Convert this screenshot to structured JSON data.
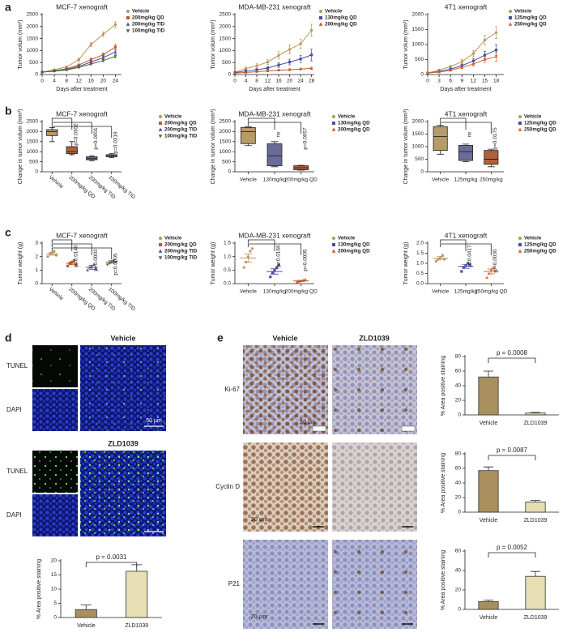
{
  "panel_labels": [
    "a",
    "b",
    "c",
    "d",
    "e"
  ],
  "chart_data": [
    {
      "type": "line",
      "title": "MCF-7 xenograft",
      "xlabel": "Days after treatment",
      "ylabel": "Tumor volum (mm³)",
      "x": [
        0,
        4,
        8,
        12,
        16,
        20,
        24
      ],
      "xlim": [
        0,
        26
      ],
      "xticks": [
        0,
        4,
        8,
        12,
        16,
        20,
        24
      ],
      "ylim": [
        0,
        2500
      ],
      "yticks": [
        0,
        500,
        1000,
        1500,
        2000,
        2500
      ],
      "series": [
        {
          "name": "Vehicle",
          "color": "#b8965a",
          "marker": "circle",
          "values": [
            100,
            200,
            320,
            620,
            1250,
            1680,
            2080
          ],
          "errors": [
            10,
            30,
            40,
            60,
            90,
            100,
            120
          ]
        },
        {
          "name": "200mg/kg QD",
          "color": "#c0582e",
          "marker": "square",
          "values": [
            100,
            160,
            240,
            400,
            620,
            820,
            1150
          ],
          "errors": [
            10,
            20,
            30,
            40,
            60,
            80,
            110
          ]
        },
        {
          "name": "200mg/kg TID",
          "color": "#4b4f9e",
          "marker": "triangle",
          "values": [
            100,
            150,
            210,
            340,
            520,
            700,
            950
          ],
          "errors": [
            10,
            20,
            30,
            40,
            50,
            60,
            80
          ]
        },
        {
          "name": "100mg/kg TID",
          "color": "#4e6b3a",
          "marker": "triangle-down",
          "values": [
            100,
            140,
            190,
            300,
            440,
            580,
            760
          ],
          "errors": [
            10,
            15,
            20,
            30,
            40,
            50,
            60
          ]
        }
      ]
    },
    {
      "type": "line",
      "title": "MDA-MB-231 xenograft",
      "xlabel": "Days after treatment",
      "ylabel": "Tumor volum (mm³)",
      "x": [
        0,
        4,
        8,
        12,
        16,
        20,
        24,
        28
      ],
      "xlim": [
        0,
        29
      ],
      "xticks": [
        0,
        4,
        8,
        12,
        16,
        20,
        24,
        28
      ],
      "ylim": [
        0,
        2500
      ],
      "yticks": [
        0,
        500,
        1000,
        1500,
        2000,
        2500
      ],
      "series": [
        {
          "name": "Vehicle",
          "color": "#b8965a",
          "marker": "circle",
          "values": [
            100,
            250,
            370,
            520,
            800,
            1050,
            1280,
            1850
          ],
          "errors": [
            20,
            60,
            80,
            100,
            150,
            180,
            200,
            250
          ]
        },
        {
          "name": "130mg/kg QD",
          "color": "#4b4f9e",
          "marker": "square",
          "values": [
            80,
            150,
            200,
            270,
            400,
            520,
            650,
            820
          ],
          "errors": [
            15,
            40,
            50,
            60,
            100,
            120,
            150,
            250
          ]
        },
        {
          "name": "200mg/kg QD",
          "color": "#c0582e",
          "marker": "triangle",
          "values": [
            60,
            90,
            120,
            150,
            180,
            200,
            230,
            260
          ],
          "errors": [
            10,
            20,
            20,
            30,
            30,
            40,
            40,
            50
          ]
        }
      ]
    },
    {
      "type": "line",
      "title": "4T1 xenograft",
      "xlabel": "Days after treatment",
      "ylabel": "Tumor volum (mm³)",
      "x": [
        0,
        3,
        6,
        9,
        12,
        15,
        18
      ],
      "xlim": [
        0,
        20
      ],
      "xticks": [
        0,
        3,
        6,
        9,
        12,
        15,
        18
      ],
      "ylim": [
        0,
        2000
      ],
      "yticks": [
        0,
        500,
        1000,
        1500,
        2000
      ],
      "series": [
        {
          "name": "Vehicle",
          "color": "#b8965a",
          "marker": "circle",
          "values": [
            50,
            150,
            260,
            430,
            700,
            1150,
            1400
          ],
          "errors": [
            10,
            30,
            50,
            70,
            100,
            150,
            200
          ]
        },
        {
          "name": "125mg/kg QD",
          "color": "#4b4f9e",
          "marker": "square",
          "values": [
            50,
            100,
            180,
            300,
            450,
            650,
            820
          ],
          "errors": [
            10,
            20,
            30,
            50,
            80,
            120,
            180
          ]
        },
        {
          "name": "250mg/kg QD",
          "color": "#d0652e",
          "marker": "triangle",
          "values": [
            50,
            80,
            140,
            240,
            350,
            500,
            600
          ],
          "errors": [
            10,
            20,
            30,
            40,
            60,
            100,
            150
          ]
        }
      ]
    },
    {
      "type": "box",
      "title": "MCF-7 xenograft",
      "ylabel": "Change in tumor volum (mm³)",
      "categories": [
        "Vehicle",
        "200mg/kg QD",
        "200mg/kg TID",
        "100mg/kg TID"
      ],
      "x_label_rotation": 40,
      "ylim": [
        0,
        2500
      ],
      "yticks": [
        0,
        500,
        1000,
        1500,
        2000,
        2500
      ],
      "boxes": [
        {
          "min": 1500,
          "q1": 1800,
          "median": 2000,
          "q3": 2100,
          "max": 2200
        },
        {
          "min": 850,
          "q1": 900,
          "median": 1000,
          "q3": 1250,
          "max": 1500
        },
        {
          "min": 550,
          "q1": 600,
          "median": 650,
          "q3": 750,
          "max": 800
        },
        {
          "min": 700,
          "q1": 750,
          "median": 800,
          "q3": 850,
          "max": 900
        }
      ],
      "colors": [
        "#b59b68",
        "#b0603a",
        "#6b6b8a",
        "#8a8060"
      ],
      "p_labels": [
        null,
        "p=0.0302",
        "p=0.0001",
        "p=0.0319"
      ],
      "legend": [
        {
          "name": "Vehicle",
          "color": "#b8965a",
          "marker": "circle"
        },
        {
          "name": "200mg/kg QD",
          "color": "#c0582e",
          "marker": "square"
        },
        {
          "name": "200mg/kg TID",
          "color": "#4b4f9e",
          "marker": "triangle"
        },
        {
          "name": "100mg/kg TID",
          "color": "#4e6b3a",
          "marker": "triangle-down"
        }
      ]
    },
    {
      "type": "box",
      "title": "MDA-MB-231 xenograft",
      "ylabel": "Change in tumor volum (mm³)",
      "categories": [
        "Vehicle",
        "130mg/kg",
        "200mg/kg QD"
      ],
      "ylim": [
        0,
        2500
      ],
      "yticks": [
        0,
        500,
        1000,
        1500,
        2000,
        2500
      ],
      "boxes": [
        {
          "min": 1300,
          "q1": 1400,
          "median": 2000,
          "q3": 2200,
          "max": 2250
        },
        {
          "min": 250,
          "q1": 300,
          "median": 800,
          "q3": 1400,
          "max": 1500
        },
        {
          "min": 80,
          "q1": 100,
          "median": 200,
          "q3": 300,
          "max": 320
        }
      ],
      "colors": [
        "#b59b68",
        "#6b6b9a",
        "#b0603a"
      ],
      "p_labels": [
        null,
        "ns",
        "p=0.0057"
      ],
      "legend": [
        {
          "name": "Vehicle",
          "color": "#b8965a",
          "marker": "circle"
        },
        {
          "name": "130mg/kg QD",
          "color": "#4b4f9e",
          "marker": "square"
        },
        {
          "name": "200mg/kg QD",
          "color": "#c0582e",
          "marker": "triangle"
        }
      ]
    },
    {
      "type": "box",
      "title": "4T1 xenograft",
      "ylabel": "Change in tumor volum (mm³)",
      "categories": [
        "Vehicle",
        "125mg/kg",
        "250mg/kg"
      ],
      "ylim": [
        0,
        2000
      ],
      "yticks": [
        0,
        500,
        1000,
        1500,
        2000
      ],
      "boxes": [
        {
          "min": 700,
          "q1": 850,
          "median": 1400,
          "q3": 1800,
          "max": 1850
        },
        {
          "min": 400,
          "q1": 450,
          "median": 800,
          "q3": 1050,
          "max": 1100
        },
        {
          "min": 200,
          "q1": 300,
          "median": 500,
          "q3": 850,
          "max": 900
        }
      ],
      "colors": [
        "#b59b68",
        "#6b6b9a",
        "#b0603a"
      ],
      "p_labels": [
        null,
        "ns",
        "p=0.0175"
      ],
      "legend": [
        {
          "name": "Vehicle",
          "color": "#b8965a",
          "marker": "circle"
        },
        {
          "name": "125mg/kg QD",
          "color": "#4b4f9e",
          "marker": "square"
        },
        {
          "name": "250mg/kg QD",
          "color": "#d0652e",
          "marker": "triangle"
        }
      ]
    },
    {
      "type": "dot",
      "title": "MCF-7 xenograft",
      "ylabel": "Tumor weight (g)",
      "categories": [
        "Vehicle",
        "200mg/kg QD",
        "200mg/kg TID",
        "100mg/kg TID"
      ],
      "x_label_rotation": 40,
      "ylim": [
        0,
        3
      ],
      "yticks": [
        0,
        1,
        2,
        3
      ],
      "points": [
        [
          2.0,
          2.2,
          2.3,
          2.4,
          2.1
        ],
        [
          1.3,
          1.5,
          1.6,
          1.7,
          1.4
        ],
        [
          1.0,
          1.2,
          1.3,
          1.4,
          1.1
        ],
        [
          1.4,
          1.5,
          1.6,
          1.7,
          1.6
        ]
      ],
      "means": [
        2.2,
        1.5,
        1.2,
        1.6
      ],
      "sems": [
        0.1,
        0.1,
        0.15,
        0.1
      ],
      "colors": [
        "#b8965a",
        "#c0582e",
        "#4b4f9e",
        "#4e6b3a"
      ],
      "markers": [
        "circle",
        "square",
        "triangle",
        "triangle-down"
      ],
      "p_labels": [
        null,
        "p=0.0140",
        "p=0.0003",
        "p=0.0005"
      ],
      "legend": [
        {
          "name": "Vehicle",
          "color": "#b8965a",
          "marker": "circle"
        },
        {
          "name": "200mg/kg QD",
          "color": "#c0582e",
          "marker": "square"
        },
        {
          "name": "200mg/kg TID",
          "color": "#4b4f9e",
          "marker": "triangle"
        },
        {
          "name": "100mg/kg TID",
          "color": "#4e6b3a",
          "marker": "triangle-down"
        }
      ]
    },
    {
      "type": "dot",
      "title": "MDA-MB-231 xenograft",
      "ylabel": "Tumor weight (g)",
      "categories": [
        "Vehicle",
        "130mg/kg",
        "200mg/kg QD"
      ],
      "ylim": [
        0,
        1.5
      ],
      "yticks": [
        {
          "value": 0,
          "label": "0.0"
        },
        0.5,
        {
          "value": 1,
          "label": "1.0"
        },
        1.5
      ],
      "points": [
        [
          0.6,
          0.8,
          1.0,
          1.2,
          1.3
        ],
        [
          0.25,
          0.4,
          0.5,
          0.6,
          0.7
        ],
        [
          0.05,
          0.08,
          0.1,
          0.12,
          0.15
        ]
      ],
      "means": [
        0.95,
        0.45,
        0.1
      ],
      "sems": [
        0.15,
        0.1,
        0.02
      ],
      "colors": [
        "#b8965a",
        "#4b4f9e",
        "#c0582e"
      ],
      "markers": [
        "circle",
        "square",
        "triangle"
      ],
      "p_labels": [
        null,
        "p=0.0166",
        "p=0.0005"
      ],
      "legend": [
        {
          "name": "Vehicle",
          "color": "#b8965a",
          "marker": "circle"
        },
        {
          "name": "130mg/kg QD",
          "color": "#4b4f9e",
          "marker": "square"
        },
        {
          "name": "200mg/kg QD",
          "color": "#c0582e",
          "marker": "triangle"
        }
      ]
    },
    {
      "type": "dot",
      "title": "4T1 xenograft",
      "ylabel": "Tumor weight (g)",
      "categories": [
        "Vehicle",
        "125mg/kg",
        "250mg/kg QD"
      ],
      "ylim": [
        0,
        2
      ],
      "yticks": [
        {
          "value": 0,
          "label": "0.0"
        },
        0.5,
        {
          "value": 1,
          "label": "1.0"
        },
        1.5,
        {
          "value": 2,
          "label": "2.0"
        }
      ],
      "points": [
        [
          1.1,
          1.2,
          1.3,
          1.4,
          1.2
        ],
        [
          0.6,
          0.8,
          0.9,
          1.0,
          0.95
        ],
        [
          0.3,
          0.5,
          0.7,
          0.8,
          0.6
        ]
      ],
      "means": [
        1.25,
        0.85,
        0.6
      ],
      "sems": [
        0.08,
        0.1,
        0.12
      ],
      "colors": [
        "#b8965a",
        "#4b4f9e",
        "#d0652e"
      ],
      "markers": [
        "circle",
        "square",
        "triangle"
      ],
      "p_labels": [
        null,
        "p=0.0417",
        "p=0.0030"
      ],
      "legend": [
        {
          "name": "Vehicle",
          "color": "#b8965a",
          "marker": "circle"
        },
        {
          "name": "125mg/kg QD",
          "color": "#4b4f9e",
          "marker": "square"
        },
        {
          "name": "250mg/kg QD",
          "color": "#d0652e",
          "marker": "triangle"
        }
      ]
    },
    {
      "type": "bar",
      "ylabel": "% Area positive staining",
      "categories": [
        "Vehicle",
        "ZLD1039"
      ],
      "values": [
        2.8,
        16.3
      ],
      "errors": [
        1.6,
        2.3
      ],
      "colors": [
        "#a8905e",
        "#e5dfb3"
      ],
      "ylim": [
        0,
        20
      ],
      "yticks": [
        0,
        5,
        10,
        15,
        20
      ],
      "p_label": "p = 0.0031"
    },
    {
      "type": "bar",
      "ylabel": "% Area positive staining",
      "categories": [
        "Vehicle",
        "ZLD1039"
      ],
      "values": [
        52,
        2.5
      ],
      "errors": [
        8,
        1
      ],
      "colors": [
        "#a8905e",
        "#e5dfb3"
      ],
      "ylim": [
        0,
        80
      ],
      "yticks": [
        0,
        20,
        40,
        60,
        80
      ],
      "p_label": "p = 0.0008"
    },
    {
      "type": "bar",
      "ylabel": "% Area positive staining",
      "categories": [
        "Vehicle",
        "ZLD1039"
      ],
      "values": [
        57,
        14
      ],
      "errors": [
        5,
        2
      ],
      "colors": [
        "#a8905e",
        "#e5dfb3"
      ],
      "ylim": [
        0,
        80
      ],
      "yticks": [
        0,
        20,
        40,
        60,
        80
      ],
      "p_label": "p = 0.0087"
    },
    {
      "type": "bar",
      "ylabel": "% Area positive staining",
      "categories": [
        "Vehicle",
        "ZLD1039"
      ],
      "values": [
        8,
        34
      ],
      "errors": [
        1.5,
        5
      ],
      "colors": [
        "#a8905e",
        "#e5dfb3"
      ],
      "ylim": [
        0,
        60
      ],
      "yticks": [
        0,
        20,
        40,
        60
      ],
      "p_label": "p = 0.0052"
    }
  ],
  "image_panels": {
    "d": {
      "groups": [
        {
          "title": "Vehicle",
          "rows": [
            "TUNEL",
            "DAPI"
          ],
          "scale_bar": "50 μm"
        },
        {
          "title": "ZLD1039",
          "rows": [
            "TUNEL",
            "DAPI"
          ]
        }
      ]
    },
    "e": {
      "columns": [
        "Vehicle",
        "ZLD1039"
      ],
      "rows": [
        {
          "label": "Ki-67",
          "scale_bar": "50 μm"
        },
        {
          "label": "Cyclin D",
          "scale_bar": "20 μm"
        },
        {
          "label": "P21",
          "scale_bar": "20 μm"
        }
      ]
    }
  }
}
